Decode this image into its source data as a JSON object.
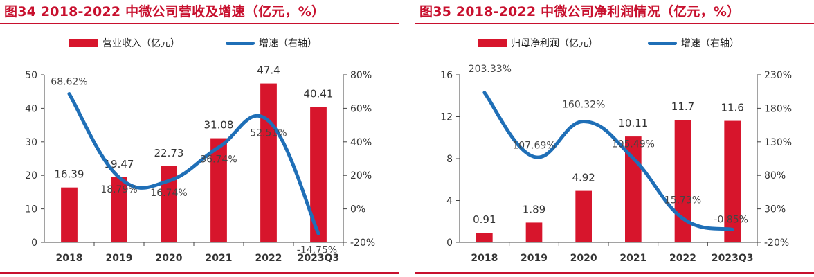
{
  "colors": {
    "accent": "#c8102e",
    "bar": "#d7152c",
    "line": "#1f6fb7",
    "axis": "#444444",
    "text": "#333333"
  },
  "panels": [
    {
      "title": "图34  2018-2022 中微公司营收及增速（亿元，%）",
      "legend": {
        "bar": "营业收入（亿元）",
        "line": "增速（右轴）"
      }
    },
    {
      "title": "图35  2018-2022 中微公司净利润情况（亿元，%）",
      "legend": {
        "bar": "归母净利润（亿元）",
        "line": "增速（右轴）"
      }
    }
  ],
  "chart_data": [
    {
      "type": "bar+line",
      "title": "图34  2018-2022 中微公司营收及增速（亿元，%）",
      "categories": [
        "2018",
        "2019",
        "2020",
        "2021",
        "2022",
        "2023Q3"
      ],
      "series": [
        {
          "name": "营业收入（亿元）",
          "type": "bar",
          "axis": "left",
          "values": [
            16.39,
            19.47,
            22.73,
            31.08,
            47.4,
            40.41
          ],
          "labels": [
            "16.39",
            "19.47",
            "22.73",
            "31.08",
            "47.4",
            "40.41"
          ]
        },
        {
          "name": "增速（右轴）",
          "type": "line",
          "axis": "right",
          "values": [
            68.62,
            18.79,
            16.74,
            36.74,
            52.51,
            -14.75
          ],
          "labels": [
            "68.62%",
            "18.79%",
            "16.74%",
            "36.74%",
            "52.51%",
            "-14.75%"
          ]
        }
      ],
      "left_axis": {
        "min": 0,
        "max": 50,
        "ticks": [
          0,
          10,
          20,
          30,
          40,
          50
        ],
        "tick_labels": [
          "0",
          "10",
          "20",
          "30",
          "40",
          "50"
        ]
      },
      "right_axis": {
        "min": -20,
        "max": 80,
        "ticks": [
          -20,
          0,
          20,
          40,
          60,
          80
        ],
        "tick_labels": [
          "-20%",
          "0%",
          "20%",
          "40%",
          "60%",
          "80%"
        ]
      }
    },
    {
      "type": "bar+line",
      "title": "图35  2018-2022 中微公司净利润情况（亿元，%）",
      "categories": [
        "2018",
        "2019",
        "2020",
        "2021",
        "2022",
        "2023Q3"
      ],
      "series": [
        {
          "name": "归母净利润（亿元）",
          "type": "bar",
          "axis": "left",
          "values": [
            0.91,
            1.89,
            4.92,
            10.11,
            11.7,
            11.6
          ],
          "labels": [
            "0.91",
            "1.89",
            "4.92",
            "10.11",
            "11.7",
            "11.6"
          ]
        },
        {
          "name": "增速（右轴）",
          "type": "line",
          "axis": "right",
          "values": [
            203.33,
            107.69,
            160.32,
            105.49,
            15.73,
            -0.85
          ],
          "labels": [
            "203.33%",
            "107.69%",
            "160.32%",
            "105.49%",
            "15.73%",
            "-0.85%"
          ]
        }
      ],
      "left_axis": {
        "min": 0,
        "max": 16,
        "ticks": [
          0,
          4,
          8,
          12,
          16
        ],
        "tick_labels": [
          "0",
          "4",
          "8",
          "12",
          "16"
        ]
      },
      "right_axis": {
        "min": -20,
        "max": 230,
        "ticks": [
          -20,
          30,
          80,
          130,
          180,
          230
        ],
        "tick_labels": [
          "-20%",
          "30%",
          "80%",
          "130%",
          "180%",
          "230%"
        ]
      }
    }
  ]
}
